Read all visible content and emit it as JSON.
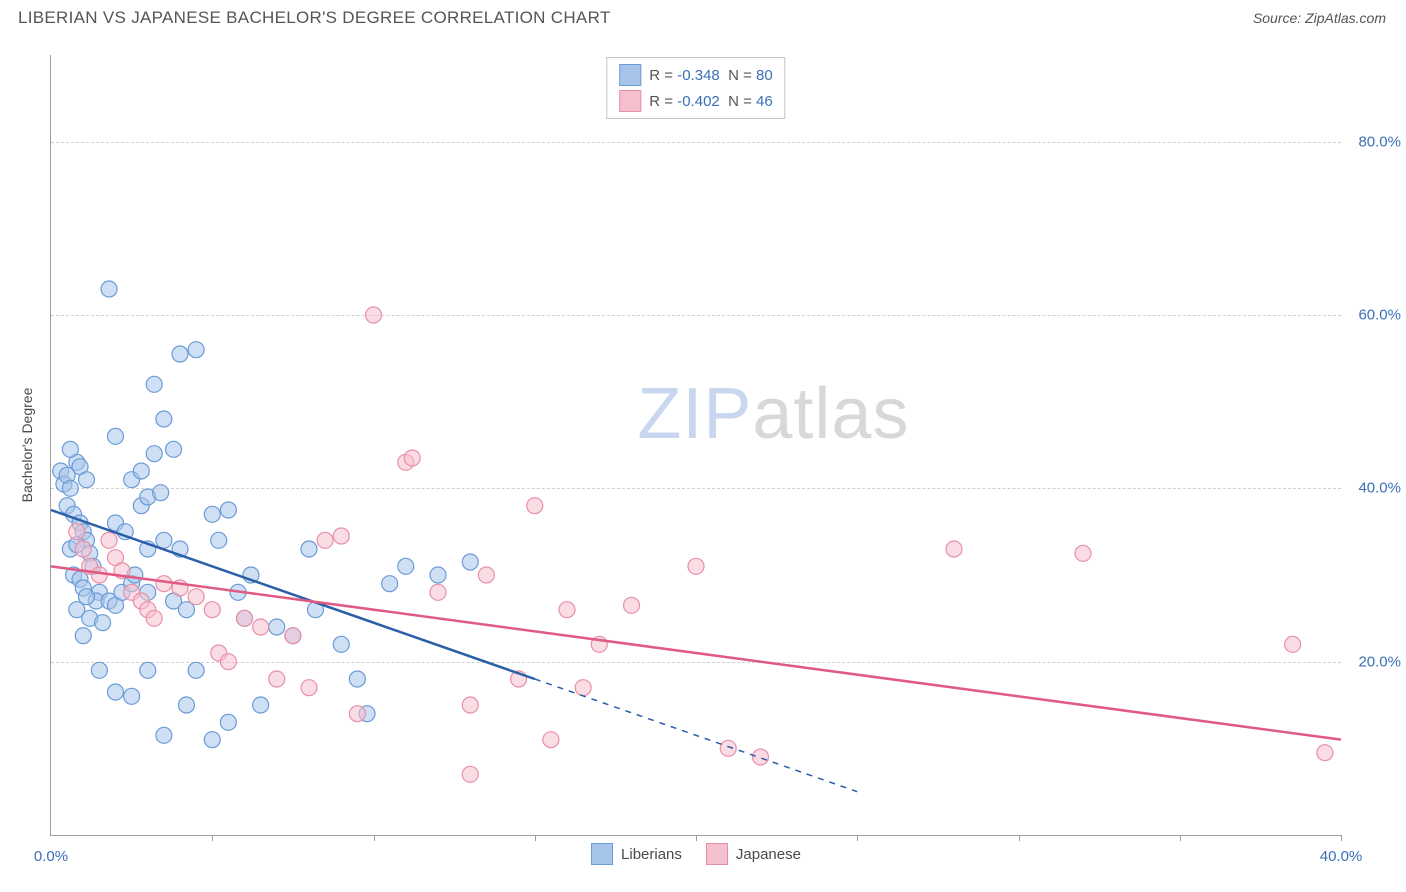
{
  "header": {
    "title": "LIBERIAN VS JAPANESE BACHELOR'S DEGREE CORRELATION CHART",
    "source": "Source: ZipAtlas.com"
  },
  "chart": {
    "type": "scatter",
    "y_axis_label": "Bachelor's Degree",
    "x_range": [
      0,
      40
    ],
    "y_range": [
      0,
      90
    ],
    "x_ticks": [
      0,
      5,
      10,
      15,
      20,
      25,
      30,
      35,
      40
    ],
    "x_tick_labels": {
      "0": "0.0%",
      "40": "40.0%"
    },
    "y_grid": [
      20,
      40,
      60,
      80
    ],
    "y_tick_labels": {
      "20": "20.0%",
      "40": "40.0%",
      "60": "60.0%",
      "80": "80.0%"
    },
    "background_color": "#ffffff",
    "grid_color": "#d0d0d0",
    "axis_color": "#9e9e9e",
    "label_color": "#3a6fb7",
    "marker_radius": 8,
    "marker_opacity": 0.55,
    "watermark": "ZIPatlas",
    "series": [
      {
        "name": "Liberians",
        "fill_color": "#a7c5eb",
        "stroke_color": "#6a9bd8",
        "line_color": "#2a5fa8",
        "r_value": "-0.348",
        "n_value": "80",
        "trend": {
          "x1": 0,
          "y1": 37.5,
          "x2": 15,
          "y2": 18,
          "x_ext": 25,
          "y_ext": 5
        },
        "points": [
          [
            0.3,
            42
          ],
          [
            0.4,
            40.5
          ],
          [
            0.5,
            41.5
          ],
          [
            0.6,
            40
          ],
          [
            0.8,
            43
          ],
          [
            0.5,
            38
          ],
          [
            0.7,
            37
          ],
          [
            0.9,
            36
          ],
          [
            1.0,
            35
          ],
          [
            1.1,
            34
          ],
          [
            0.6,
            33
          ],
          [
            0.8,
            33.5
          ],
          [
            1.2,
            32.5
          ],
          [
            1.3,
            31
          ],
          [
            0.7,
            30
          ],
          [
            0.9,
            29.5
          ],
          [
            1.0,
            28.5
          ],
          [
            1.5,
            28
          ],
          [
            1.4,
            27
          ],
          [
            1.1,
            27.5
          ],
          [
            1.8,
            27
          ],
          [
            2.0,
            26.5
          ],
          [
            0.8,
            26
          ],
          [
            1.2,
            25
          ],
          [
            1.6,
            24.5
          ],
          [
            1.0,
            23
          ],
          [
            2.2,
            28
          ],
          [
            2.5,
            29
          ],
          [
            2.8,
            38
          ],
          [
            3.0,
            39
          ],
          [
            3.2,
            44
          ],
          [
            3.4,
            39.5
          ],
          [
            3.0,
            33
          ],
          [
            3.5,
            34
          ],
          [
            4.0,
            33
          ],
          [
            4.0,
            55.5
          ],
          [
            4.5,
            56
          ],
          [
            3.2,
            52
          ],
          [
            3.5,
            48
          ],
          [
            1.8,
            63
          ],
          [
            2.0,
            46
          ],
          [
            2.5,
            41
          ],
          [
            2.8,
            42
          ],
          [
            2.0,
            36
          ],
          [
            2.3,
            35
          ],
          [
            2.6,
            30
          ],
          [
            3.0,
            28
          ],
          [
            3.8,
            27
          ],
          [
            4.2,
            26
          ],
          [
            5.0,
            37
          ],
          [
            5.5,
            37.5
          ],
          [
            5.2,
            34
          ],
          [
            5.8,
            28
          ],
          [
            6.2,
            30
          ],
          [
            6.0,
            25
          ],
          [
            7.0,
            24
          ],
          [
            7.5,
            23
          ],
          [
            8.0,
            33
          ],
          [
            8.2,
            26
          ],
          [
            9.0,
            22
          ],
          [
            9.5,
            18
          ],
          [
            9.8,
            14
          ],
          [
            10.5,
            29
          ],
          [
            11.0,
            31
          ],
          [
            12.0,
            30
          ],
          [
            13.0,
            31.5
          ],
          [
            2.5,
            16
          ],
          [
            3.0,
            19
          ],
          [
            4.5,
            19
          ],
          [
            5.0,
            11
          ],
          [
            5.5,
            13
          ],
          [
            2.0,
            16.5
          ],
          [
            1.5,
            19
          ],
          [
            0.9,
            42.5
          ],
          [
            1.1,
            41
          ],
          [
            0.6,
            44.5
          ],
          [
            3.8,
            44.5
          ],
          [
            4.2,
            15
          ],
          [
            6.5,
            15
          ],
          [
            3.5,
            11.5
          ]
        ]
      },
      {
        "name": "Japanese",
        "fill_color": "#f5c0cd",
        "stroke_color": "#e88fa8",
        "line_color": "#e05a82",
        "r_value": "-0.402",
        "n_value": "46",
        "trend": {
          "x1": 0,
          "y1": 31,
          "x2": 40,
          "y2": 11,
          "x_ext": 40,
          "y_ext": 11
        },
        "points": [
          [
            0.8,
            35
          ],
          [
            1.0,
            33
          ],
          [
            1.2,
            31
          ],
          [
            1.5,
            30
          ],
          [
            1.8,
            34
          ],
          [
            2.0,
            32
          ],
          [
            2.2,
            30.5
          ],
          [
            2.5,
            28
          ],
          [
            2.8,
            27
          ],
          [
            3.0,
            26
          ],
          [
            3.2,
            25
          ],
          [
            3.5,
            29
          ],
          [
            4.0,
            28.5
          ],
          [
            4.5,
            27.5
          ],
          [
            5.0,
            26
          ],
          [
            5.2,
            21
          ],
          [
            5.5,
            20
          ],
          [
            6.0,
            25
          ],
          [
            6.5,
            24
          ],
          [
            7.0,
            18
          ],
          [
            7.5,
            23
          ],
          [
            8.0,
            17
          ],
          [
            8.5,
            34
          ],
          [
            9.0,
            34.5
          ],
          [
            9.5,
            14
          ],
          [
            10.0,
            60
          ],
          [
            11.0,
            43
          ],
          [
            11.2,
            43.5
          ],
          [
            12.0,
            28
          ],
          [
            13.0,
            15
          ],
          [
            13.5,
            30
          ],
          [
            14.5,
            18
          ],
          [
            15.0,
            38
          ],
          [
            16.0,
            26
          ],
          [
            16.5,
            17
          ],
          [
            17.0,
            22
          ],
          [
            18.0,
            26.5
          ],
          [
            20.0,
            31
          ],
          [
            21.0,
            10
          ],
          [
            22.0,
            9
          ],
          [
            28.0,
            33
          ],
          [
            32.0,
            32.5
          ],
          [
            38.5,
            22
          ],
          [
            39.5,
            9.5
          ],
          [
            13.0,
            7
          ],
          [
            15.5,
            11
          ]
        ]
      }
    ],
    "legend_bottom": [
      "Liberians",
      "Japanese"
    ]
  }
}
